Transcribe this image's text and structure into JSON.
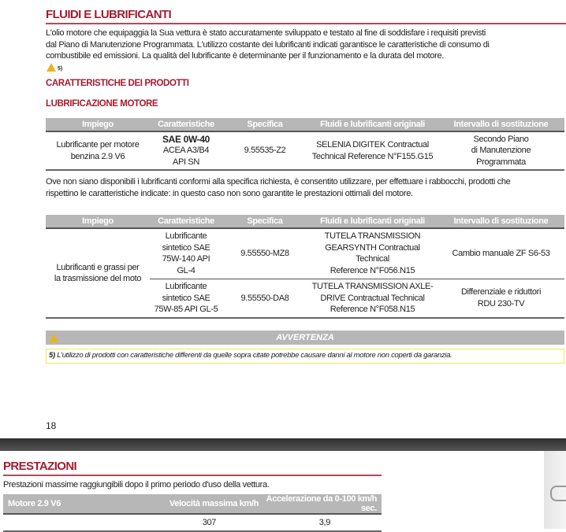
{
  "page1": {
    "title": "FLUIDI E LUBRIFICANTI",
    "intro": [
      "L'olio motore che equipaggia la Sua vettura è stato accuratamente sviluppato e testato al fine di soddisfare i requisiti previsti",
      "dal Piano di Manutenzione Programmata. L'utilizzo costante dei lubrificanti indicati garantisce le caratteristiche di consumo di",
      "combustibile ed emissioni. La qualità del lubrificante è determinante per il funzionamento e la durata del motore."
    ],
    "warning_ref": "5)",
    "section": "CARATTERISTICHE DEI PRODOTTI",
    "subsection": "LUBRIFICAZIONE MOTORE",
    "headers": [
      "Impiego",
      "Caratteristiche",
      "Specifica",
      "Fluidi e lubrificanti originali",
      "Intervallo di sostituzione"
    ],
    "table1": {
      "impiego": [
        "Lubrificante per motore",
        "benzina 2.9 V6"
      ],
      "car": [
        "SAE 0W-40",
        "ACEA A3/B4",
        "API SN"
      ],
      "spec": "9.55535-Z2",
      "fluid": [
        "SELENIA DIGITEK Contractual",
        "Technical Reference N°F155.G15"
      ],
      "interval": [
        "Secondo Piano",
        "di Manutenzione",
        "Programmata"
      ]
    },
    "note": [
      "Ove non siano disponibili i lubrificanti conformi alla specifica richiesta, è consentito utilizzare, per effettuare i rabbocchi, prodotti che",
      "rispettino le caratteristiche indicate: in questo caso non sono garantite le prestazioni ottimali del motore."
    ],
    "table2": {
      "impiego": [
        "Lubrificanti e grassi per",
        "la trasmissione del moto"
      ],
      "rows": [
        {
          "car": [
            "Lubrificante",
            "sintetico SAE",
            "75W-140 API",
            "GL-4"
          ],
          "spec": "9.55550-MZ8",
          "fluid": [
            "TUTELA TRANSMISSION",
            "GEARSYNTH Contractual Technical",
            "Reference N°F056.N15"
          ],
          "interval": [
            "Cambio manuale ZF S6-53"
          ]
        },
        {
          "car": [
            "Lubrificante",
            "sintetico SAE",
            "75W-85 API GL-5"
          ],
          "spec": "9.55550-DA8",
          "fluid": [
            "TUTELA TRANSMISSION AXLE-",
            "DRIVE Contractual Technical",
            "Reference N°F058.N15"
          ],
          "interval": [
            "Differenziale e riduttori",
            "RDU 230-TV"
          ]
        }
      ]
    },
    "warning_title": "AVVERTENZA",
    "warning_num": "5)",
    "warning_text": " L'utilizzo di prodotti con caratteristiche differenti da quelle sopra citate potrebbe causare danni al motore non coperti da garanzia.",
    "page_number": "18"
  },
  "page2": {
    "title": "PRESTAZIONI",
    "intro": "Prestazioni massime raggiungibili dopo il primo periodo d'uso della vettura.",
    "headers": [
      "Motore 2.9 V6",
      "Velocità massima km/h",
      "Accelerazione da 0-100 km/h sec."
    ],
    "row": [
      "",
      "307",
      "3,9"
    ]
  },
  "colors": {
    "accent": "#a51c30",
    "header_gray": "#b7b7b7",
    "warning_yellow": "#f2e84a"
  }
}
